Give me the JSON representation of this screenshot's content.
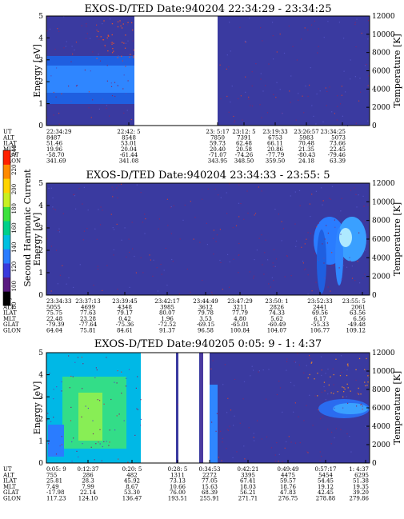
{
  "chart_data": [
    {
      "type": "heatmap",
      "title": "EXOS-D/TED   Date:940204   22:34:29 - 23:34:25",
      "ylabel": "Energy [eV]",
      "y2label": "Temperature [K]",
      "ylim": [
        0,
        5
      ],
      "y2lim": [
        0,
        12000
      ],
      "yticks": [
        "0",
        "1",
        "2",
        "3",
        "4",
        "5"
      ],
      "y2ticks": [
        "0",
        "2000",
        "4000",
        "6000",
        "8000",
        "10000",
        "12000"
      ],
      "data_gaps": [
        {
          "from": "22:42: 5",
          "to": "23: 5:17"
        }
      ],
      "table": {
        "rows": [
          "UT",
          "ALT",
          "ILAT",
          "MLT",
          "GLAT",
          "GLON"
        ],
        "columns": [
          [
            "22:34:29",
            "8487",
            "51.46",
            "19.96",
            "-58.70",
            "341.69"
          ],
          [
            "22:42: 5",
            "8548",
            "53.01",
            "20.04",
            "-61.44",
            "341.08"
          ],
          [
            "23: 5:17",
            "7850",
            "59.73",
            "20.40",
            "-71.07",
            "343.95"
          ],
          [
            "23:12: 5",
            "7391",
            "62.48",
            "20.58",
            "-74.26",
            "348.50"
          ],
          [
            "23:19:33",
            "6753",
            "66.11",
            "20.86",
            "-77.79",
            "359.50"
          ],
          [
            "23:26:57",
            "5983",
            "70.48",
            "21.35",
            "-80.43",
            "24.18"
          ],
          [
            "23:34:25",
            "5073",
            "73.66",
            "22.45",
            "-79.46",
            "63.39"
          ]
        ]
      }
    },
    {
      "type": "heatmap",
      "title": "EXOS-D/TED   Date:940204   23:34:33 - 23:55: 5",
      "ylabel": "Energy [eV]",
      "y2label": "Temperature [K]",
      "ylim": [
        0,
        5
      ],
      "y2lim": [
        0,
        12000
      ],
      "yticks": [
        "0",
        "1",
        "2",
        "3",
        "4",
        "5"
      ],
      "y2ticks": [
        "0",
        "2000",
        "4000",
        "6000",
        "8000",
        "10000",
        "12000"
      ],
      "colorbar": {
        "label": "Second Harmonic Current",
        "range": [
          80,
          240
        ],
        "ticks": [
          "80",
          "100",
          "120",
          "140",
          "160",
          "180",
          "200",
          "220",
          "240"
        ]
      },
      "table": {
        "rows": [
          "UT",
          "ALT",
          "ILAT",
          "MLT",
          "GLAT",
          "GLON"
        ],
        "columns": [
          [
            "23:34:33",
            "5055",
            "75.75",
            "22.48",
            "-79.39",
            "64.04"
          ],
          [
            "23:37:13",
            "4699",
            "77.63",
            "23.28",
            "-77.64",
            "75.81"
          ],
          [
            "23:39:45",
            "4348",
            "79.17",
            "0.42",
            "-75.36",
            "84.61"
          ],
          [
            "23:42:17",
            "3985",
            "80.07",
            "1.96",
            "-72.52",
            "91.37"
          ],
          [
            "23:44:49",
            "3612",
            "79.78",
            "3.53",
            "-69.15",
            "96.58"
          ],
          [
            "23:47:29",
            "3211",
            "77.79",
            "4.80",
            "-65.01",
            "100.84"
          ],
          [
            "23:50: 1",
            "2826",
            "74.33",
            "5.62",
            "-60.49",
            "104.07"
          ],
          [
            "23:52:33",
            "2441",
            "69.56",
            "6.17",
            "-55.33",
            "106.77"
          ],
          [
            "23:55: 5",
            "2061",
            "63.56",
            "6.56",
            "-49.48",
            "109.12"
          ]
        ]
      }
    },
    {
      "type": "heatmap",
      "title": "EXOS-D/TED   Date:940205   0:05: 9 -  1: 4:37",
      "ylabel": "Energy [eV]",
      "y2label": "Temperature [K]",
      "ylim": [
        0,
        5
      ],
      "y2lim": [
        0,
        12000
      ],
      "yticks": [
        "0",
        "1",
        "2",
        "3",
        "4",
        "5"
      ],
      "y2ticks": [
        "0",
        "2000",
        "4000",
        "6000",
        "8000",
        "10000",
        "12000"
      ],
      "table": {
        "rows": [
          "UT",
          "ALT",
          "ILAT",
          "MLT",
          "GLAT",
          "GLON"
        ],
        "columns": [
          [
            "0:05: 9",
            "755",
            "25.81",
            "7.49",
            "-17.98",
            "117.23"
          ],
          [
            "0:12:37",
            "286",
            "28.3",
            "7.99",
            "22.14",
            "124.10"
          ],
          [
            "0:20: 5",
            "482",
            "45.92",
            "8.67",
            "53.30",
            "136.47"
          ],
          [
            "0:28: 5",
            "1311",
            "73.13",
            "10.66",
            "76.00",
            "193.51"
          ],
          [
            "0:34:53",
            "2272",
            "77.05",
            "15.63",
            "68.39",
            "255.91"
          ],
          [
            "0:42:21",
            "3395",
            "67.41",
            "18.03",
            "56.21",
            "271.71"
          ],
          [
            "0:49:49",
            "4475",
            "59.57",
            "18.76",
            "47.83",
            "276.75"
          ],
          [
            "0:57:17",
            "5454",
            "54.45",
            "19.12",
            "42.45",
            "278.88"
          ],
          [
            "1: 4:37",
            "6295",
            "51.38",
            "19.35",
            "39.20",
            "279.86"
          ]
        ]
      }
    }
  ]
}
